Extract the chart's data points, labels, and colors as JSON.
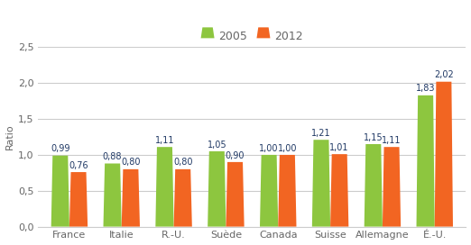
{
  "categories": [
    "France",
    "Italie",
    "R.-U.",
    "Suède",
    "Canada",
    "Suisse",
    "Allemagne",
    "É.-U."
  ],
  "values_2005": [
    0.99,
    0.88,
    1.11,
    1.05,
    1.0,
    1.21,
    1.15,
    1.83
  ],
  "values_2012": [
    0.76,
    0.8,
    0.8,
    0.9,
    1.0,
    1.01,
    1.11,
    2.02
  ],
  "color_2005": "#8dc63f",
  "color_2012": "#f26522",
  "ylabel": "Ratio",
  "ylim": [
    0.0,
    2.5
  ],
  "yticks": [
    0.0,
    0.5,
    1.0,
    1.5,
    2.0,
    2.5
  ],
  "ytick_labels": [
    "0,0",
    "0,5",
    "1,0",
    "1,5",
    "2,0",
    "2,5"
  ],
  "legend_2005": "2005",
  "legend_2012": "2012",
  "bar_width": 0.35,
  "background_color": "#ffffff",
  "plot_bg_color": "#ffffff",
  "grid_color": "#cccccc",
  "label_fontsize": 7,
  "axis_fontsize": 8,
  "legend_fontsize": 9,
  "label_color": "#1f3864",
  "tick_label_color": "#666666"
}
